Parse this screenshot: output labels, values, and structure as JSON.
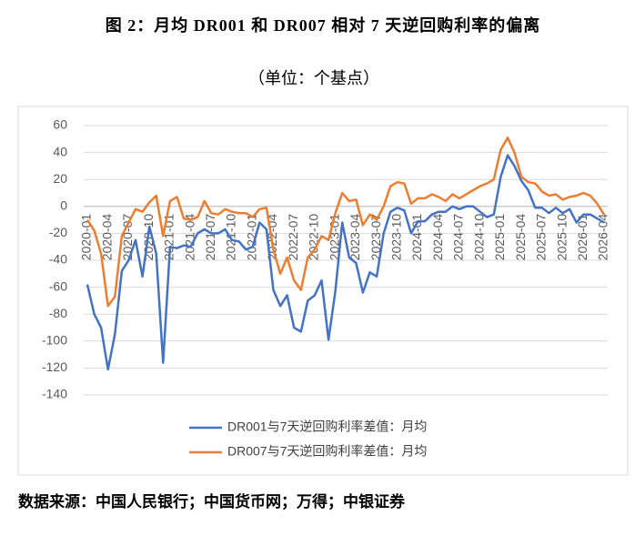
{
  "chart_data": {
    "type": "line",
    "title": "图 2：月均 DR001 和 DR007 相对 7 天逆回购利率的偏离",
    "subtitle": "（单位：个基点）",
    "source": "数据来源：中国人民银行；中国货币网；万得；中银证券",
    "categories": [
      "2020-01",
      null,
      null,
      "2020-04",
      null,
      null,
      "2020-07",
      null,
      null,
      "2020-10",
      null,
      null,
      "2021-01",
      null,
      null,
      "2021-04",
      null,
      null,
      "2021-07",
      null,
      null,
      "2021-10",
      null,
      null,
      "2022-01",
      null,
      null,
      "2022-04",
      null,
      null,
      "2022-07",
      null,
      null,
      "2022-10",
      null,
      null,
      "2023-01",
      null,
      null,
      "2023-04",
      null,
      null,
      "2023-07",
      null,
      null,
      "2023-10",
      null,
      null,
      "2024-01",
      null,
      null,
      "2024-04",
      null,
      null,
      "2024-07",
      null,
      null,
      "2024-10",
      null,
      null,
      "2025-01",
      null,
      null,
      "2025-04",
      null,
      null,
      "2025-07",
      null,
      null,
      "2025-10",
      null,
      null,
      "2026-01",
      null,
      null,
      "2026-04"
    ],
    "series": [
      {
        "name": "DR001与7天逆回购利率差值：月均",
        "color": "#4472c4",
        "values": [
          -58,
          -80,
          -90,
          -121,
          -95,
          -48,
          -40,
          -25,
          -52,
          -15,
          -35,
          -116,
          -30,
          -31,
          -29,
          -30,
          -20,
          -17,
          -20,
          -20,
          -17,
          -25,
          -26,
          -32,
          -30,
          -12,
          -17,
          -62,
          -74,
          -66,
          -90,
          -93,
          -70,
          -66,
          -55,
          -99,
          -63,
          -12,
          -38,
          -42,
          -64,
          -49,
          -52,
          -20,
          -4,
          -1,
          -3,
          -20,
          -11,
          -11,
          -6,
          -4,
          -4,
          0,
          -2,
          0,
          0,
          -4,
          -8,
          -6,
          22,
          38,
          30,
          19,
          12,
          -1,
          -1,
          -5,
          -1,
          -5,
          -2,
          -12,
          -6,
          -6,
          -9,
          -12
        ]
      },
      {
        "name": "DR007与7天逆回购利率差值：月均",
        "color": "#ed7d31",
        "values": [
          -10,
          -18,
          -35,
          -74,
          -67,
          -22,
          -12,
          -2,
          -4,
          3,
          8,
          -22,
          4,
          7,
          -9,
          -10,
          -8,
          4,
          -5,
          -6,
          -2,
          -4,
          -5,
          -5,
          -8,
          -2,
          -1,
          -32,
          -50,
          -38,
          -55,
          -62,
          -38,
          -32,
          -22,
          -25,
          -5,
          10,
          4,
          5,
          -14,
          -6,
          -10,
          0,
          15,
          18,
          17,
          2,
          6,
          6,
          9,
          7,
          4,
          9,
          6,
          9,
          12,
          15,
          17,
          20,
          42,
          51,
          40,
          22,
          18,
          17,
          11,
          8,
          9,
          5,
          7,
          8,
          10,
          8,
          2,
          -6
        ]
      }
    ],
    "ylim": [
      -140,
      60
    ],
    "yticks": [
      -140,
      -120,
      -100,
      -80,
      -60,
      -40,
      -20,
      0,
      20,
      40,
      60
    ],
    "grid": true
  }
}
